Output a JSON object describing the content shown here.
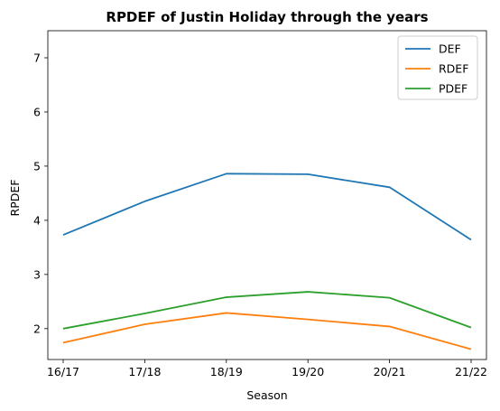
{
  "chart_data": {
    "type": "line",
    "title": "RPDEF of Justin Holiday through the years",
    "xlabel": "Season",
    "ylabel": "RPDEF",
    "categories": [
      "16/17",
      "17/18",
      "18/19",
      "19/20",
      "20/21",
      "21/22"
    ],
    "yticks": [
      "2",
      "3",
      "4",
      "5",
      "6",
      "7"
    ],
    "ylim": [
      1.43,
      7.5
    ],
    "grid": false,
    "legend_position": "top-right",
    "series": [
      {
        "name": "DEF",
        "color": "#1f77b4",
        "values": [
          3.73,
          4.35,
          4.86,
          4.85,
          4.61,
          3.64
        ]
      },
      {
        "name": "RDEF",
        "color": "#ff7f0e",
        "values": [
          1.74,
          2.08,
          2.29,
          2.17,
          2.04,
          1.62
        ]
      },
      {
        "name": "PDEF",
        "color": "#2ca02c",
        "values": [
          2.0,
          2.28,
          2.58,
          2.68,
          2.57,
          2.02
        ]
      }
    ]
  }
}
